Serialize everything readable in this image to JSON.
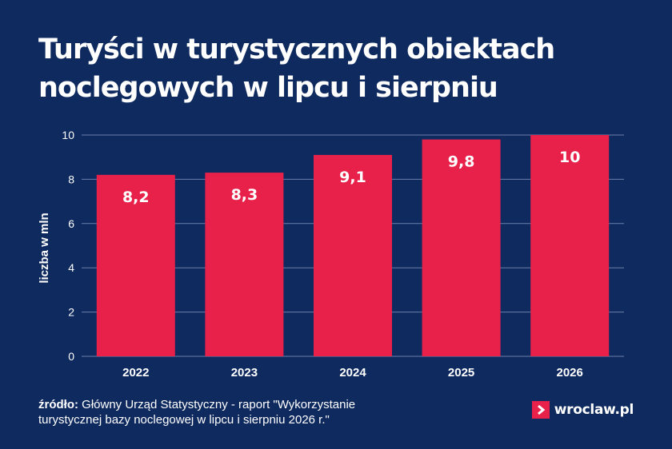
{
  "title_lines": [
    "Turyści w turystycznych obiektach",
    "noclegowych w lipcu i sierpniu"
  ],
  "colors": {
    "background": "#0f2a5f",
    "bar": "#e8214b",
    "text": "#ffffff",
    "grid": "#6b7fa8"
  },
  "chart_data": {
    "type": "bar",
    "categories": [
      "2022",
      "2023",
      "2024",
      "2025",
      "2026"
    ],
    "values": [
      8.2,
      8.3,
      9.1,
      9.8,
      10
    ],
    "data_labels": [
      "8,2",
      "8,3",
      "9,1",
      "9,8",
      "10"
    ],
    "ylabel": "liczba w mln",
    "xlabel": "",
    "ylim": [
      0,
      10
    ],
    "yticks": [
      0,
      2,
      4,
      6,
      8,
      10
    ],
    "grid": true,
    "legend": "none"
  },
  "source": {
    "label": "źródło:",
    "line1": " Główny Urząd Statystyczny - raport \"Wykorzystanie",
    "line2": "turystycznej bazy noclegowej w lipcu i sierpniu 2026 r.\""
  },
  "logo": {
    "text": "wroclaw.pl",
    "icon": "chevron-right-icon"
  }
}
